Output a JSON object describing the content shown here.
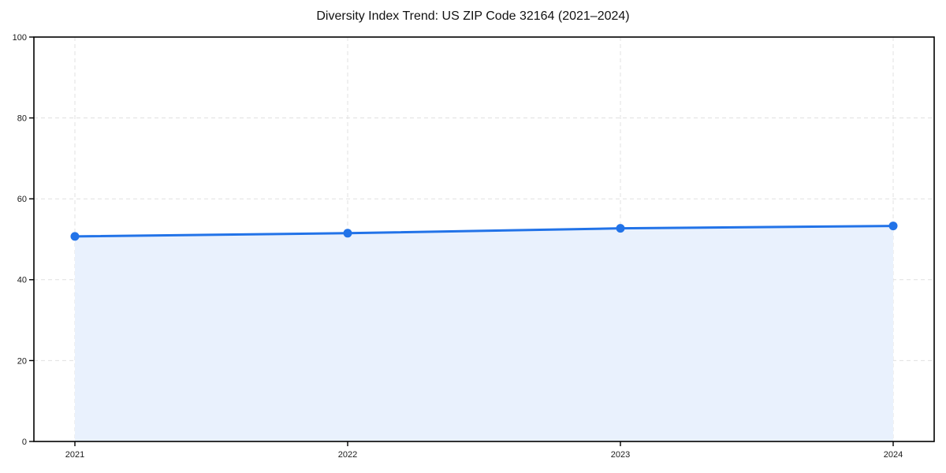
{
  "figure": {
    "title": "Diversity Index Trend: US ZIP Code 32164 (2021–2024)"
  },
  "chart_data": {
    "type": "area",
    "title": "Diversity Index Trend: US ZIP Code 32164 (2021–2024)",
    "xlabel": "",
    "ylabel": "",
    "x": [
      2021,
      2022,
      2023,
      2024
    ],
    "x_tick_labels": [
      "2021",
      "2022",
      "2023",
      "2024"
    ],
    "series": [
      {
        "name": "Diversity Index",
        "values": [
          50.7,
          51.5,
          52.7,
          53.3
        ]
      }
    ],
    "ylim": [
      0,
      100
    ],
    "yticks": [
      0,
      20,
      40,
      60,
      80,
      100
    ],
    "grid": true,
    "grid_style": "dashed",
    "legend_position": "none",
    "marker": "circle",
    "colors": {
      "line": "#2273e8",
      "marker": "#2273e8",
      "area_fill": "#e9f1fd",
      "grid": "#e0e0e0",
      "axis": "#000000",
      "tick_text": "#1a1a1a",
      "background": "#ffffff"
    }
  }
}
